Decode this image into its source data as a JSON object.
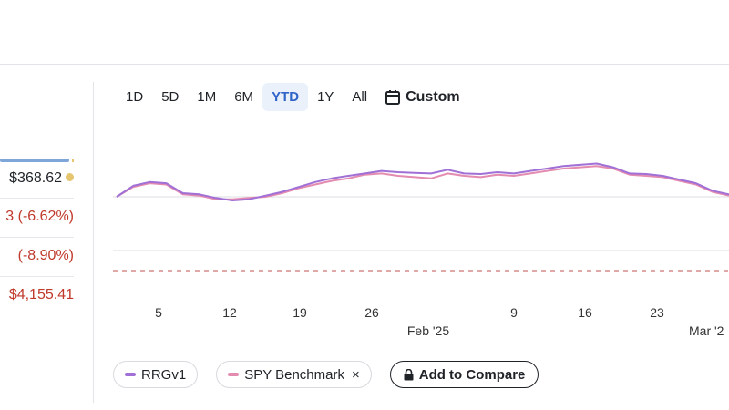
{
  "stats": {
    "value": "$368.62",
    "change_pct": "3 (-6.62%)",
    "change_pct2": " (-8.90%)",
    "amount": "$4,155.41",
    "colors": {
      "bar": "#7ea6d8",
      "dot": "#e5c56e",
      "negative": "#c0392b"
    }
  },
  "tabs": [
    {
      "label": "1D",
      "active": false
    },
    {
      "label": "5D",
      "active": false
    },
    {
      "label": "1M",
      "active": false
    },
    {
      "label": "6M",
      "active": false
    },
    {
      "label": "YTD",
      "active": true
    },
    {
      "label": "1Y",
      "active": false
    },
    {
      "label": "All",
      "active": false
    }
  ],
  "custom_tab": {
    "label": "Custom",
    "icon": "calendar-icon"
  },
  "chart_data": {
    "type": "line",
    "x_ticks": [
      "5",
      "12",
      "19",
      "26",
      "9",
      "16",
      "23",
      "Mar '2"
    ],
    "x_month_labels": [
      "Feb '25"
    ],
    "series": [
      {
        "name": "RRGv1",
        "color": "#a070d6",
        "values": [
          0.0,
          0.9,
          1.2,
          1.1,
          0.3,
          0.2,
          -0.1,
          -0.3,
          -0.2,
          0.1,
          0.4,
          0.8,
          1.2,
          1.5,
          1.7,
          1.9,
          2.1,
          2.0,
          1.95,
          1.9,
          2.2,
          1.9,
          1.85,
          2.0,
          1.9,
          2.1,
          2.3,
          2.5,
          2.6,
          2.7,
          2.4,
          1.9,
          1.85,
          1.7,
          1.4,
          1.1,
          0.5,
          0.2
        ]
      },
      {
        "name": "SPY Benchmark",
        "color": "#e48bb0",
        "values": [
          0.0,
          0.8,
          1.1,
          1.0,
          0.2,
          0.1,
          -0.2,
          -0.2,
          -0.1,
          0.0,
          0.3,
          0.7,
          1.0,
          1.3,
          1.5,
          1.8,
          1.9,
          1.7,
          1.6,
          1.5,
          1.9,
          1.7,
          1.6,
          1.8,
          1.7,
          1.9,
          2.1,
          2.3,
          2.4,
          2.5,
          2.3,
          1.8,
          1.7,
          1.6,
          1.3,
          1.0,
          0.4,
          0.1
        ]
      }
    ],
    "reference_lines": [
      {
        "kind": "dashed",
        "color": "#c0504d"
      }
    ]
  },
  "legend": {
    "items": [
      {
        "label": "RRGv1",
        "color": "#a070d6",
        "removable": false
      },
      {
        "label": "SPY Benchmark",
        "color": "#e48bb0",
        "removable": true,
        "remove_glyph": "×"
      }
    ],
    "compare_button": {
      "label": "Add to Compare",
      "icon": "lock-icon"
    }
  }
}
